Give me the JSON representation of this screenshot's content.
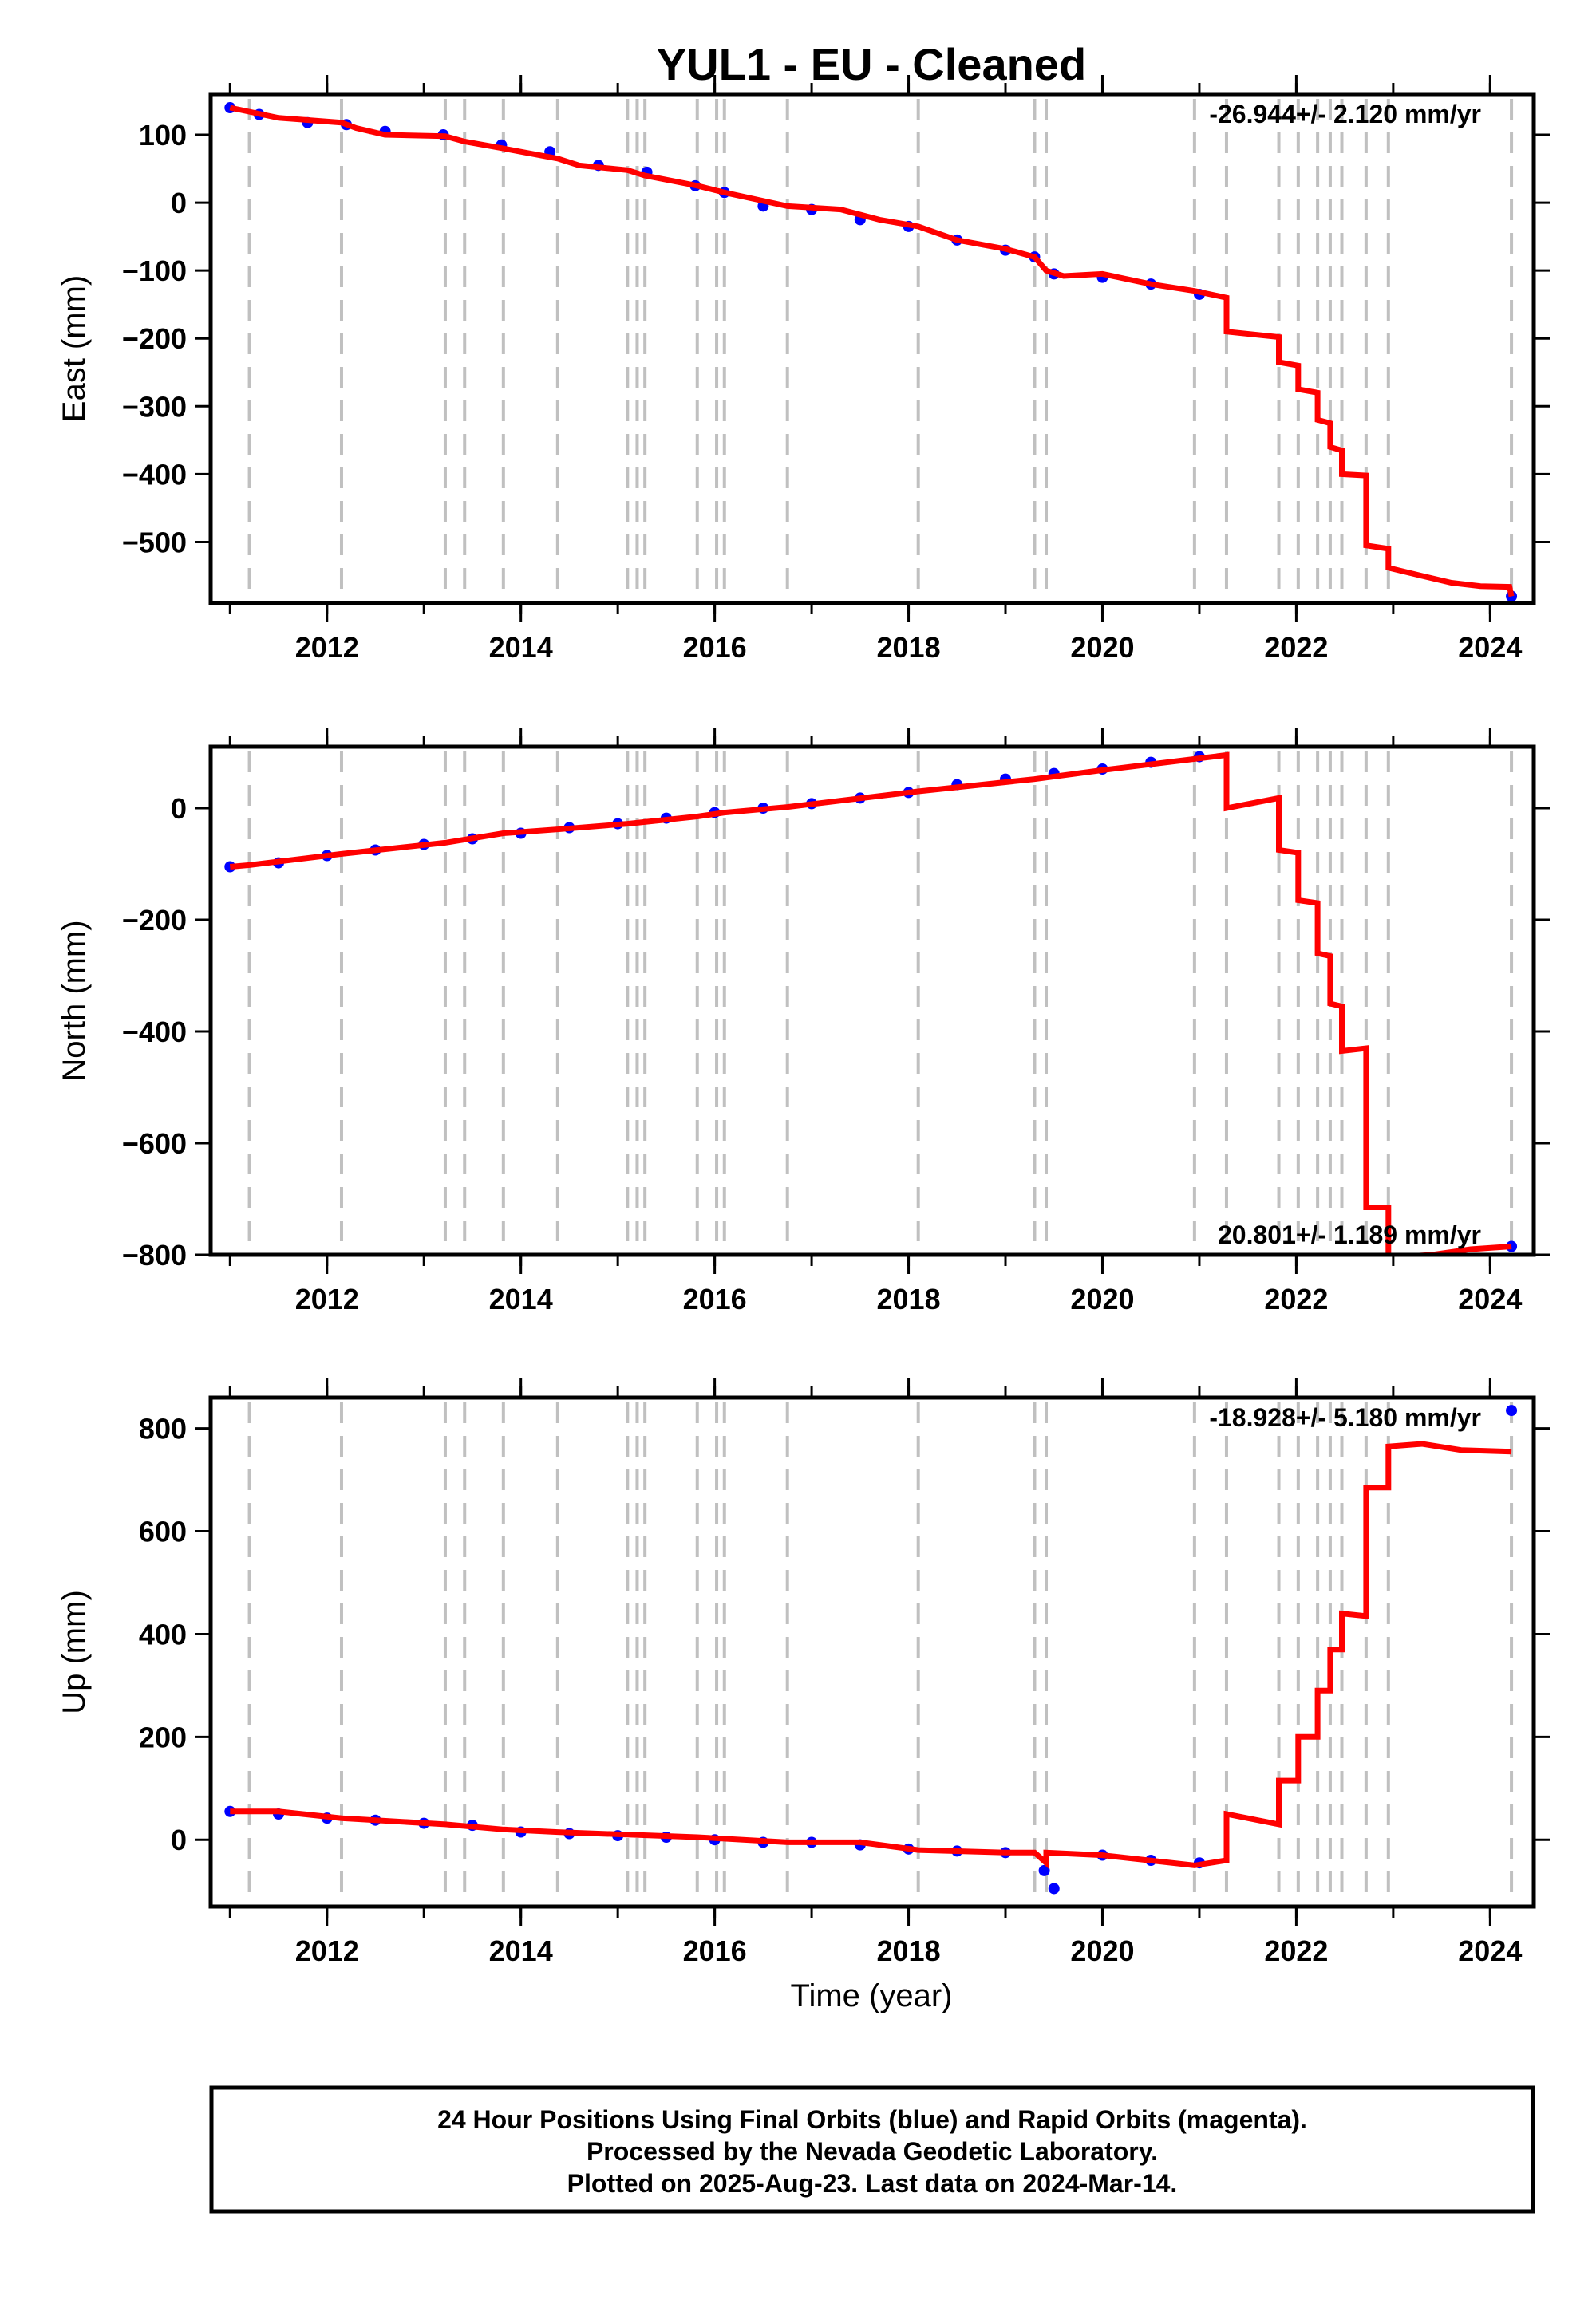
{
  "title": "YUL1  - EU - Cleaned",
  "xlabel": "Time (year)",
  "footer": [
    "24 Hour Positions Using Final Orbits (blue) and Rapid Orbits (magenta).",
    "Processed by the Nevada Geodetic Laboratory.",
    "Plotted on 2025-Aug-23. Last data on 2024-Mar-14."
  ],
  "colors": {
    "data": "#0000ff",
    "model": "#ff0000",
    "event_lines": "#c0c0c0",
    "frame": "#000000"
  },
  "chart_data": [
    {
      "type": "scatter",
      "name": "east",
      "ylabel": "East (mm)",
      "rate": "-26.944+/- 2.120 mm/yr",
      "rate_position": "top-right",
      "xlim": [
        2010.8,
        2024.45
      ],
      "ylim": [
        -590,
        160
      ],
      "xticks": [
        2012,
        2014,
        2016,
        2018,
        2020,
        2022,
        2024
      ],
      "yticks": [
        100,
        0,
        -100,
        -200,
        -300,
        -400,
        -500
      ],
      "event_lines": [
        2011.2,
        2012.15,
        2013.22,
        2013.42,
        2013.82,
        2014.38,
        2015.1,
        2015.2,
        2015.28,
        2015.82,
        2016.02,
        2016.1,
        2016.75,
        2018.1,
        2019.3,
        2019.42,
        2020.95,
        2021.28,
        2021.82,
        2022.02,
        2022.22,
        2022.35,
        2022.47,
        2022.72,
        2022.95,
        2024.22
      ],
      "series": [
        {
          "name": "",
          "points": [
            [
              2011.0,
              140
            ],
            [
              2011.3,
              130
            ],
            [
              2011.8,
              118
            ],
            [
              2012.2,
              115
            ],
            [
              2012.6,
              105
            ],
            [
              2013.2,
              100
            ],
            [
              2013.8,
              85
            ],
            [
              2014.3,
              75
            ],
            [
              2014.8,
              55
            ],
            [
              2015.3,
              45
            ],
            [
              2015.8,
              25
            ],
            [
              2016.1,
              15
            ],
            [
              2016.5,
              -5
            ],
            [
              2017.0,
              -10
            ],
            [
              2017.5,
              -25
            ],
            [
              2018.0,
              -35
            ],
            [
              2018.5,
              -55
            ],
            [
              2019.0,
              -70
            ],
            [
              2019.3,
              -80
            ],
            [
              2019.5,
              -105
            ],
            [
              2020.0,
              -110
            ],
            [
              2020.5,
              -120
            ],
            [
              2021.0,
              -135
            ],
            [
              2024.22,
              -580
            ]
          ]
        },
        {
          "name": "",
          "line": [
            [
              2011.0,
              140
            ],
            [
              2011.5,
              125
            ],
            [
              2012.15,
              118
            ],
            [
              2012.3,
              110
            ],
            [
              2012.6,
              100
            ],
            [
              2013.22,
              98
            ],
            [
              2013.42,
              90
            ],
            [
              2013.82,
              80
            ],
            [
              2014.38,
              65
            ],
            [
              2014.6,
              55
            ],
            [
              2015.1,
              48
            ],
            [
              2015.28,
              40
            ],
            [
              2015.82,
              25
            ],
            [
              2016.1,
              15
            ],
            [
              2016.75,
              -5
            ],
            [
              2017.3,
              -10
            ],
            [
              2017.7,
              -25
            ],
            [
              2018.1,
              -35
            ],
            [
              2018.5,
              -55
            ],
            [
              2019.0,
              -68
            ],
            [
              2019.3,
              -80
            ],
            [
              2019.42,
              -100
            ],
            [
              2019.6,
              -108
            ],
            [
              2020.0,
              -105
            ],
            [
              2020.5,
              -120
            ],
            [
              2020.95,
              -130
            ],
            [
              2021.28,
              -140
            ],
            [
              2021.28,
              -190
            ],
            [
              2021.82,
              -198
            ],
            [
              2021.82,
              -235
            ],
            [
              2022.02,
              -240
            ],
            [
              2022.02,
              -275
            ],
            [
              2022.22,
              -280
            ],
            [
              2022.22,
              -320
            ],
            [
              2022.35,
              -325
            ],
            [
              2022.35,
              -360
            ],
            [
              2022.47,
              -365
            ],
            [
              2022.47,
              -400
            ],
            [
              2022.72,
              -402
            ],
            [
              2022.72,
              -505
            ],
            [
              2022.95,
              -510
            ],
            [
              2022.95,
              -538
            ],
            [
              2023.3,
              -550
            ],
            [
              2023.6,
              -560
            ],
            [
              2023.9,
              -565
            ],
            [
              2024.2,
              -566
            ],
            [
              2024.22,
              -580
            ]
          ]
        }
      ]
    },
    {
      "type": "scatter",
      "name": "north",
      "ylabel": "North (mm)",
      "rate": "20.801+/- 1.189 mm/yr",
      "rate_position": "bottom-right",
      "xlim": [
        2010.8,
        2024.45
      ],
      "ylim": [
        -800,
        110
      ],
      "xticks": [
        2012,
        2014,
        2016,
        2018,
        2020,
        2022,
        2024
      ],
      "yticks": [
        0,
        -200,
        -400,
        -600,
        -800
      ],
      "event_lines": [
        2011.2,
        2012.15,
        2013.22,
        2013.42,
        2013.82,
        2014.38,
        2015.1,
        2015.2,
        2015.28,
        2015.82,
        2016.02,
        2016.1,
        2016.75,
        2018.1,
        2019.3,
        2019.42,
        2020.95,
        2021.28,
        2021.82,
        2022.02,
        2022.22,
        2022.35,
        2022.47,
        2022.72,
        2022.95,
        2024.22
      ],
      "series": [
        {
          "name": "",
          "points": [
            [
              2011.0,
              -105
            ],
            [
              2011.5,
              -98
            ],
            [
              2012.0,
              -85
            ],
            [
              2012.5,
              -75
            ],
            [
              2013.0,
              -65
            ],
            [
              2013.5,
              -55
            ],
            [
              2014.0,
              -45
            ],
            [
              2014.5,
              -35
            ],
            [
              2015.0,
              -28
            ],
            [
              2015.5,
              -18
            ],
            [
              2016.0,
              -8
            ],
            [
              2016.5,
              0
            ],
            [
              2017.0,
              8
            ],
            [
              2017.5,
              18
            ],
            [
              2018.0,
              28
            ],
            [
              2018.5,
              42
            ],
            [
              2019.0,
              52
            ],
            [
              2019.5,
              62
            ],
            [
              2020.0,
              70
            ],
            [
              2020.5,
              82
            ],
            [
              2021.0,
              92
            ],
            [
              2024.22,
              -785
            ]
          ]
        },
        {
          "name": "",
          "line": [
            [
              2011.0,
              -105
            ],
            [
              2011.2,
              -102
            ],
            [
              2012.15,
              -82
            ],
            [
              2013.22,
              -62
            ],
            [
              2013.82,
              -45
            ],
            [
              2014.38,
              -38
            ],
            [
              2015.1,
              -28
            ],
            [
              2015.82,
              -15
            ],
            [
              2016.1,
              -8
            ],
            [
              2016.75,
              2
            ],
            [
              2018.1,
              30
            ],
            [
              2019.3,
              52
            ],
            [
              2020.0,
              68
            ],
            [
              2020.95,
              88
            ],
            [
              2021.28,
              95
            ],
            [
              2021.28,
              0
            ],
            [
              2021.82,
              18
            ],
            [
              2021.82,
              -75
            ],
            [
              2022.02,
              -80
            ],
            [
              2022.02,
              -165
            ],
            [
              2022.22,
              -170
            ],
            [
              2022.22,
              -260
            ],
            [
              2022.35,
              -265
            ],
            [
              2022.35,
              -350
            ],
            [
              2022.47,
              -355
            ],
            [
              2022.47,
              -435
            ],
            [
              2022.72,
              -430
            ],
            [
              2022.72,
              -715
            ],
            [
              2022.95,
              -715
            ],
            [
              2022.95,
              -805
            ],
            [
              2023.4,
              -800
            ],
            [
              2023.8,
              -790
            ],
            [
              2024.22,
              -785
            ]
          ]
        }
      ]
    },
    {
      "type": "scatter",
      "name": "up",
      "ylabel": "Up (mm)",
      "rate": "-18.928+/- 5.180 mm/yr",
      "rate_position": "top-right",
      "xlim": [
        2010.8,
        2024.45
      ],
      "ylim": [
        -130,
        860
      ],
      "xticks": [
        2012,
        2014,
        2016,
        2018,
        2020,
        2022,
        2024
      ],
      "yticks": [
        800,
        600,
        400,
        200,
        0
      ],
      "event_lines": [
        2011.2,
        2012.15,
        2013.22,
        2013.42,
        2013.82,
        2014.38,
        2015.1,
        2015.2,
        2015.28,
        2015.82,
        2016.02,
        2016.1,
        2016.75,
        2018.1,
        2019.3,
        2019.42,
        2020.95,
        2021.28,
        2021.82,
        2022.02,
        2022.22,
        2022.35,
        2022.47,
        2022.72,
        2022.95,
        2024.22
      ],
      "series": [
        {
          "name": "",
          "points": [
            [
              2011.0,
              55
            ],
            [
              2011.5,
              50
            ],
            [
              2012.0,
              42
            ],
            [
              2012.5,
              38
            ],
            [
              2013.0,
              32
            ],
            [
              2013.5,
              28
            ],
            [
              2014.0,
              15
            ],
            [
              2014.5,
              12
            ],
            [
              2015.0,
              8
            ],
            [
              2015.5,
              5
            ],
            [
              2016.0,
              0
            ],
            [
              2016.5,
              -5
            ],
            [
              2017.0,
              -5
            ],
            [
              2017.5,
              -10
            ],
            [
              2018.0,
              -18
            ],
            [
              2018.5,
              -22
            ],
            [
              2019.0,
              -25
            ],
            [
              2019.4,
              -60
            ],
            [
              2019.5,
              -95
            ],
            [
              2020.0,
              -30
            ],
            [
              2020.5,
              -40
            ],
            [
              2021.0,
              -45
            ],
            [
              2024.22,
              835
            ]
          ]
        },
        {
          "name": "",
          "line": [
            [
              2011.0,
              55
            ],
            [
              2011.5,
              55
            ],
            [
              2012.15,
              42
            ],
            [
              2013.22,
              30
            ],
            [
              2013.82,
              20
            ],
            [
              2014.38,
              15
            ],
            [
              2015.1,
              10
            ],
            [
              2015.82,
              5
            ],
            [
              2016.75,
              -5
            ],
            [
              2017.5,
              -5
            ],
            [
              2018.1,
              -20
            ],
            [
              2019.0,
              -25
            ],
            [
              2019.3,
              -25
            ],
            [
              2019.42,
              -45
            ],
            [
              2019.42,
              -25
            ],
            [
              2020.0,
              -30
            ],
            [
              2020.95,
              -50
            ],
            [
              2021.28,
              -40
            ],
            [
              2021.28,
              50
            ],
            [
              2021.82,
              30
            ],
            [
              2021.82,
              115
            ],
            [
              2022.02,
              115
            ],
            [
              2022.02,
              200
            ],
            [
              2022.22,
              200
            ],
            [
              2022.22,
              290
            ],
            [
              2022.35,
              290
            ],
            [
              2022.35,
              370
            ],
            [
              2022.47,
              370
            ],
            [
              2022.47,
              440
            ],
            [
              2022.72,
              435
            ],
            [
              2022.72,
              685
            ],
            [
              2022.95,
              685
            ],
            [
              2022.95,
              765
            ],
            [
              2023.3,
              770
            ],
            [
              2023.7,
              758
            ],
            [
              2024.22,
              755
            ]
          ]
        }
      ]
    }
  ]
}
